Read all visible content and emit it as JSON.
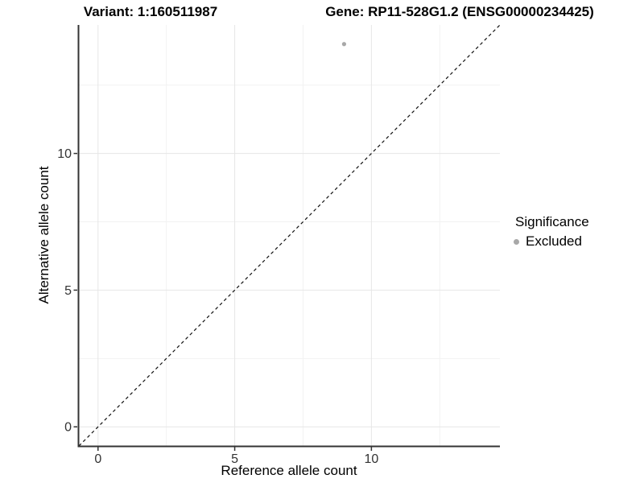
{
  "title_left": "Variant: 1:160511987",
  "title_right": "Gene: RP11-528G1.2 (ENSG00000234425)",
  "axes": {
    "x_label": "Reference allele count",
    "y_label": "Alternative allele count"
  },
  "legend": {
    "title": "Significance",
    "items": [
      {
        "label": "Excluded",
        "color": "#a8a8a8"
      }
    ]
  },
  "colors": {
    "point": "#a8a8a8",
    "axis_line": "#333333",
    "tick_label": "#333333",
    "grid_major": "#e6e6e6",
    "grid_minor": "#f2f2f2",
    "identity_line": "#111111",
    "background": "#ffffff"
  },
  "chart_data": {
    "type": "scatter",
    "title": "Variant: 1:160511987   Gene: RP11-528G1.2 (ENSG00000234425)",
    "xlabel": "Reference allele count",
    "ylabel": "Alternative allele count",
    "points": [
      {
        "x": 9,
        "y": 14,
        "significance": "Excluded",
        "color": "#a8a8a8"
      }
    ],
    "x_ticks": [
      0,
      5,
      10
    ],
    "y_ticks": [
      0,
      5,
      10
    ],
    "minor_ticks": [
      2.5,
      7.5,
      12.5
    ],
    "xlim": [
      -0.7,
      14.7
    ],
    "ylim": [
      -0.7,
      14.7
    ],
    "grid": true,
    "legend_position": "right",
    "annotations": [
      {
        "type": "abline",
        "slope": 1,
        "intercept": 0,
        "linestyle": "dashed"
      }
    ]
  }
}
